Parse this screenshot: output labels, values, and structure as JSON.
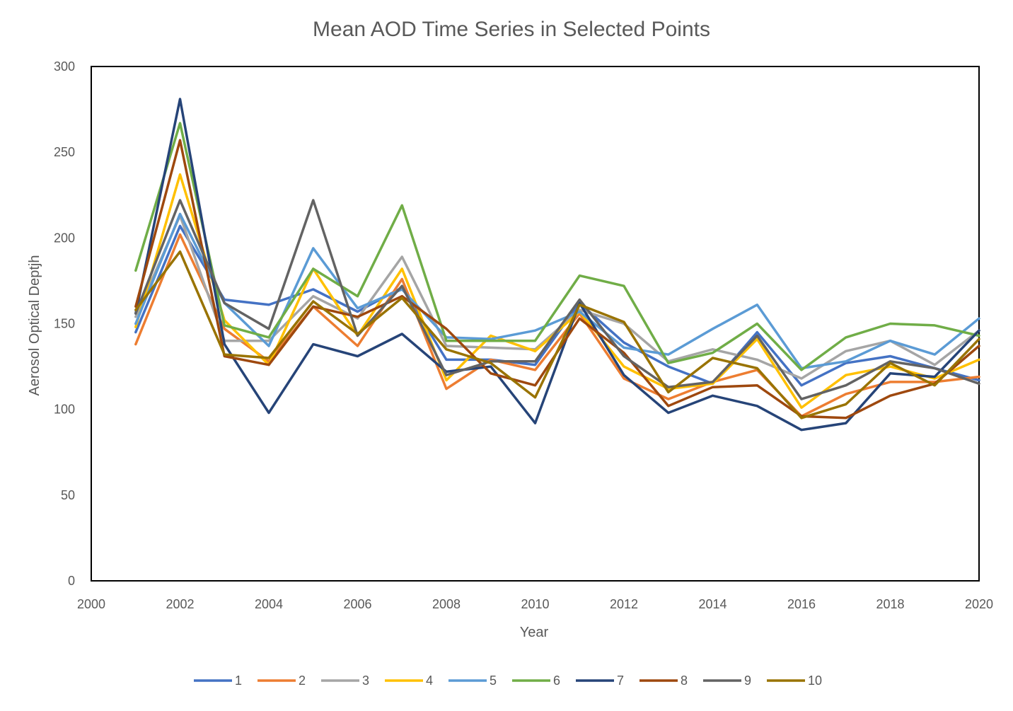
{
  "chart_data": {
    "type": "line",
    "title": "Mean AOD Time Series in Selected Points",
    "xlabel": "Year",
    "ylabel": "Aerosol Optical Deptjh",
    "xlim": [
      2000,
      2020
    ],
    "ylim": [
      0,
      300
    ],
    "x_ticks": [
      "2000",
      "2002",
      "2004",
      "2006",
      "2008",
      "2010",
      "2012",
      "2014",
      "2016",
      "2018",
      "2020"
    ],
    "y_ticks": [
      "0",
      "50",
      "100",
      "150",
      "200",
      "250",
      "300"
    ],
    "grid": false,
    "legend_position": "bottom",
    "x": [
      2001,
      2002,
      2003,
      2004,
      2005,
      2006,
      2007,
      2008,
      2009,
      2010,
      2011,
      2012,
      2013,
      2014,
      2015,
      2016,
      2017,
      2018,
      2019,
      2020
    ],
    "series": [
      {
        "name": "1",
        "color": "#4472C4",
        "values": [
          145,
          207,
          164,
          161,
          170,
          157,
          171,
          129,
          129,
          126,
          162,
          139,
          125,
          115,
          145,
          114,
          127,
          131,
          124,
          117
        ]
      },
      {
        "name": "2",
        "color": "#ED7D31",
        "values": [
          138,
          202,
          147,
          128,
          160,
          137,
          176,
          112,
          129,
          123,
          156,
          118,
          106,
          116,
          123,
          96,
          109,
          116,
          116,
          119
        ]
      },
      {
        "name": "3",
        "color": "#A5A5A5",
        "values": [
          154,
          213,
          140,
          140,
          166,
          153,
          189,
          137,
          136,
          135,
          158,
          150,
          128,
          135,
          129,
          118,
          134,
          140,
          126,
          146
        ]
      },
      {
        "name": "4",
        "color": "#FFC000",
        "values": [
          148,
          237,
          152,
          126,
          182,
          143,
          182,
          117,
          143,
          134,
          157,
          125,
          112,
          115,
          141,
          101,
          120,
          125,
          118,
          129
        ]
      },
      {
        "name": "5",
        "color": "#5B9BD5",
        "values": [
          150,
          214,
          162,
          137,
          194,
          159,
          170,
          142,
          141,
          146,
          157,
          136,
          132,
          147,
          161,
          124,
          128,
          140,
          132,
          153
        ]
      },
      {
        "name": "6",
        "color": "#70AD47",
        "values": [
          181,
          267,
          149,
          142,
          182,
          166,
          219,
          140,
          140,
          140,
          178,
          172,
          127,
          133,
          150,
          123,
          142,
          150,
          149,
          143
        ]
      },
      {
        "name": "7",
        "color": "#264478",
        "values": [
          156,
          281,
          138,
          98,
          138,
          131,
          144,
          122,
          125,
          92,
          162,
          120,
          98,
          108,
          102,
          88,
          92,
          121,
          119,
          146
        ]
      },
      {
        "name": "8",
        "color": "#9E480E",
        "values": [
          160,
          257,
          131,
          126,
          160,
          154,
          166,
          147,
          121,
          114,
          153,
          133,
          102,
          113,
          114,
          96,
          95,
          108,
          115,
          137
        ]
      },
      {
        "name": "9",
        "color": "#636363",
        "values": [
          156,
          222,
          162,
          147,
          222,
          143,
          172,
          120,
          128,
          128,
          164,
          131,
          113,
          116,
          143,
          106,
          114,
          128,
          124,
          115
        ]
      },
      {
        "name": "10",
        "color": "#997300",
        "values": [
          158,
          192,
          132,
          130,
          163,
          144,
          165,
          135,
          127,
          107,
          161,
          151,
          110,
          130,
          124,
          95,
          103,
          127,
          114,
          141
        ]
      }
    ]
  }
}
